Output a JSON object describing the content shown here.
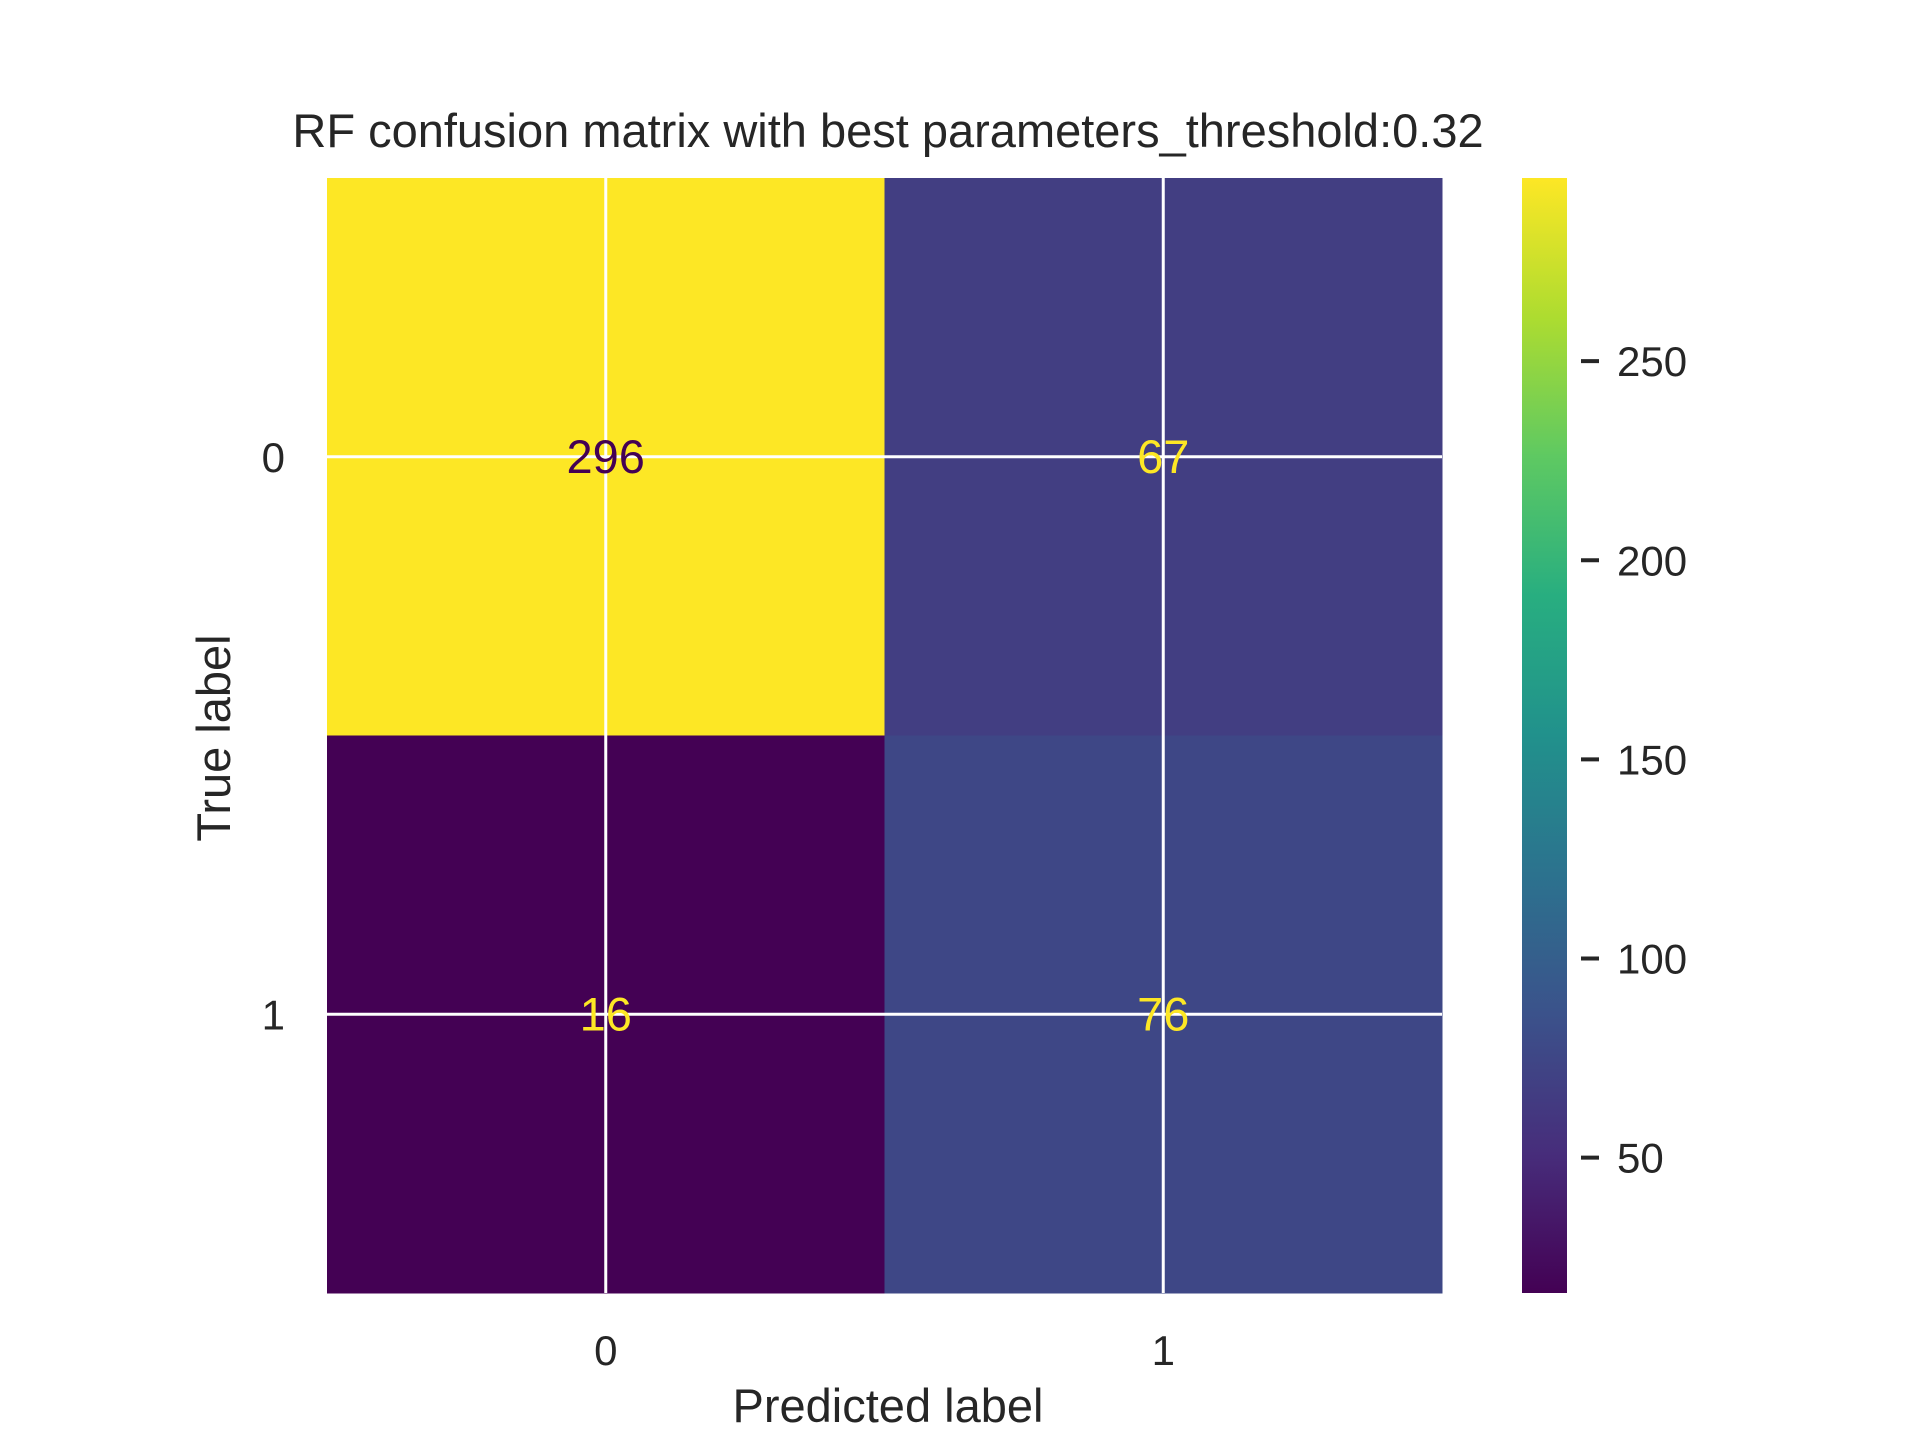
{
  "chart_data": {
    "type": "heatmap",
    "title": "RF confusion matrix with best parameters_threshold:0.32",
    "xlabel": "Predicted label",
    "ylabel": "True label",
    "x_categories": [
      "0",
      "1"
    ],
    "y_categories": [
      "0",
      "1"
    ],
    "values": [
      [
        296,
        67
      ],
      [
        16,
        76
      ]
    ],
    "colormap": "viridis",
    "colorbar": {
      "range": [
        16,
        296
      ],
      "ticks": [
        50,
        100,
        150,
        200,
        250
      ],
      "tick_labels": [
        "50",
        "100",
        "150",
        "200",
        "250"
      ]
    },
    "grid": true,
    "grid_color": "#ffffff",
    "label_color_dark": "#440154",
    "label_color_light": "#fde725"
  }
}
